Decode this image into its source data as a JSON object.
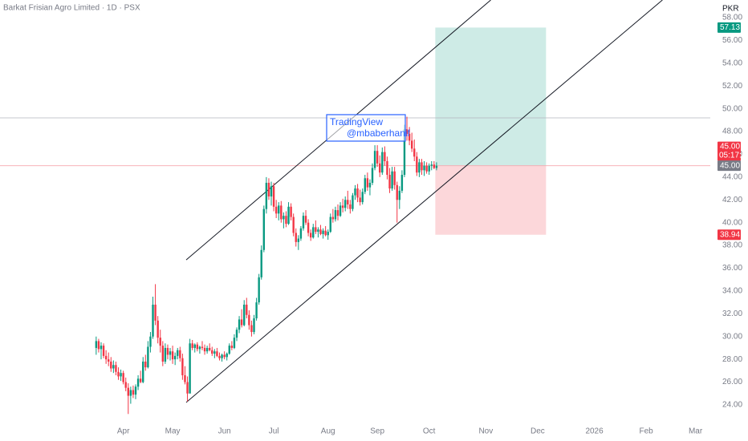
{
  "chart_data": {
    "type": "candlestick",
    "title": "Barkat Frisian Agro Limited · 1D · PSX",
    "currency": "PKR",
    "up_color": "#089981",
    "down_color": "#f23645",
    "grid": false,
    "xlim": [
      -39,
      249
    ],
    "xticks": [
      {
        "value": 11,
        "label": "Apr"
      },
      {
        "value": 31,
        "label": "May"
      },
      {
        "value": 52,
        "label": "Jun"
      },
      {
        "value": 72,
        "label": "Jul"
      },
      {
        "value": 94,
        "label": "Aug"
      },
      {
        "value": 114,
        "label": "Sep"
      },
      {
        "value": 135,
        "label": "Oct"
      },
      {
        "value": 158,
        "label": "Nov"
      },
      {
        "value": 179,
        "label": "Dec"
      },
      {
        "value": 202,
        "label": "2026"
      },
      {
        "value": 223,
        "label": "Feb"
      },
      {
        "value": 243,
        "label": "Mar"
      }
    ],
    "ylim": [
      22.8,
      59.55
    ],
    "yticks": [
      {
        "value": 24,
        "label": "24.00"
      },
      {
        "value": 26,
        "label": "26.00"
      },
      {
        "value": 28,
        "label": "28.00"
      },
      {
        "value": 30,
        "label": "30.00"
      },
      {
        "value": 32,
        "label": "32.00"
      },
      {
        "value": 34,
        "label": "34.00"
      },
      {
        "value": 36,
        "label": "36.00"
      },
      {
        "value": 38,
        "label": "38.00"
      },
      {
        "value": 40,
        "label": "40.00"
      },
      {
        "value": 42,
        "label": "42.00"
      },
      {
        "value": 44,
        "label": "44.00"
      },
      {
        "value": 46,
        "label": "46.00"
      },
      {
        "value": 48,
        "label": "48.00"
      },
      {
        "value": 50,
        "label": "50.00"
      },
      {
        "value": 52,
        "label": "52.00"
      },
      {
        "value": 54,
        "label": "54.00"
      },
      {
        "value": 56,
        "label": "56.00"
      },
      {
        "value": 58,
        "label": "58.00"
      }
    ],
    "ohlc": [
      [
        29.0,
        30.0,
        28.4,
        29.6
      ],
      [
        29.6,
        29.8,
        28.6,
        28.9
      ],
      [
        28.9,
        29.5,
        28.0,
        29.2
      ],
      [
        29.2,
        29.4,
        28.1,
        28.3
      ],
      [
        28.3,
        28.8,
        27.6,
        28.0
      ],
      [
        28.0,
        28.6,
        27.4,
        27.8
      ],
      [
        27.8,
        28.2,
        26.9,
        27.2
      ],
      [
        27.2,
        27.9,
        26.8,
        27.5
      ],
      [
        27.5,
        27.8,
        26.6,
        26.9
      ],
      [
        26.9,
        27.3,
        26.2,
        26.5
      ],
      [
        26.5,
        27.1,
        26.1,
        26.8
      ],
      [
        26.8,
        27.0,
        25.8,
        26.0
      ],
      [
        26.0,
        26.4,
        25.2,
        25.5
      ],
      [
        25.5,
        25.9,
        23.2,
        24.8
      ],
      [
        24.8,
        25.6,
        24.1,
        25.3
      ],
      [
        25.3,
        25.7,
        24.6,
        24.9
      ],
      [
        24.9,
        25.8,
        24.5,
        25.6
      ],
      [
        25.6,
        26.6,
        25.3,
        26.3
      ],
      [
        26.3,
        27.0,
        25.9,
        26.0
      ],
      [
        26.0,
        28.2,
        25.9,
        27.8
      ],
      [
        27.8,
        28.4,
        27.0,
        27.3
      ],
      [
        27.3,
        29.6,
        27.2,
        29.1
      ],
      [
        29.1,
        30.4,
        28.6,
        30.0
      ],
      [
        30.0,
        33.5,
        29.8,
        32.8
      ],
      [
        32.8,
        34.6,
        31.0,
        31.4
      ],
      [
        31.4,
        31.8,
        29.4,
        29.9
      ],
      [
        29.9,
        30.6,
        28.6,
        29.2
      ],
      [
        29.2,
        29.6,
        27.4,
        27.8
      ],
      [
        27.8,
        29.4,
        27.6,
        29.0
      ],
      [
        29.0,
        29.3,
        28.0,
        28.4
      ],
      [
        28.4,
        29.0,
        27.9,
        28.7
      ],
      [
        28.7,
        29.2,
        27.6,
        28.0
      ],
      [
        28.0,
        28.6,
        27.5,
        28.3
      ],
      [
        28.3,
        29.0,
        28.0,
        28.8
      ],
      [
        28.8,
        29.1,
        27.8,
        28.1
      ],
      [
        28.1,
        28.5,
        26.2,
        26.6
      ],
      [
        26.6,
        27.4,
        25.8,
        26.0
      ],
      [
        26.0,
        26.5,
        24.3,
        25.0
      ],
      [
        25.0,
        29.8,
        25.0,
        29.4
      ],
      [
        29.4,
        29.7,
        28.8,
        29.0
      ],
      [
        29.0,
        29.4,
        28.6,
        29.3
      ],
      [
        29.3,
        29.5,
        28.7,
        28.9
      ],
      [
        28.9,
        29.2,
        28.5,
        29.1
      ],
      [
        29.1,
        29.6,
        28.8,
        29.0
      ],
      [
        29.0,
        29.3,
        28.4,
        28.7
      ],
      [
        28.7,
        29.2,
        28.5,
        29.0
      ],
      [
        29.0,
        29.4,
        28.7,
        28.8
      ],
      [
        28.8,
        29.1,
        28.3,
        28.5
      ],
      [
        28.5,
        28.9,
        28.1,
        28.7
      ],
      [
        28.7,
        29.0,
        28.2,
        28.3
      ],
      [
        28.3,
        28.6,
        27.9,
        28.1
      ],
      [
        28.1,
        28.5,
        27.8,
        28.4
      ],
      [
        28.4,
        28.7,
        28.0,
        28.2
      ],
      [
        28.2,
        28.6,
        27.9,
        28.5
      ],
      [
        28.5,
        29.4,
        28.4,
        29.2
      ],
      [
        29.2,
        29.6,
        28.8,
        29.0
      ],
      [
        29.0,
        30.2,
        28.9,
        29.9
      ],
      [
        29.9,
        30.8,
        29.6,
        30.6
      ],
      [
        30.6,
        31.8,
        30.3,
        31.5
      ],
      [
        31.5,
        32.4,
        30.8,
        31.0
      ],
      [
        31.0,
        33.2,
        30.9,
        32.8
      ],
      [
        32.8,
        33.4,
        31.6,
        31.9
      ],
      [
        31.9,
        32.3,
        30.6,
        31.0
      ],
      [
        31.0,
        31.4,
        30.0,
        30.4
      ],
      [
        30.4,
        31.9,
        30.2,
        31.6
      ],
      [
        31.6,
        33.4,
        31.4,
        33.0
      ],
      [
        33.0,
        35.5,
        32.8,
        35.2
      ],
      [
        35.2,
        38.0,
        35.0,
        37.6
      ],
      [
        37.6,
        41.5,
        37.4,
        41.2
      ],
      [
        41.2,
        44.0,
        40.8,
        43.5
      ],
      [
        43.5,
        43.9,
        42.0,
        42.3
      ],
      [
        42.3,
        43.6,
        41.5,
        43.2
      ],
      [
        43.2,
        43.5,
        41.0,
        41.4
      ],
      [
        41.4,
        42.0,
        40.4,
        40.8
      ],
      [
        40.8,
        41.8,
        40.2,
        41.5
      ],
      [
        41.5,
        41.9,
        40.0,
        40.3
      ],
      [
        40.3,
        40.9,
        39.5,
        40.6
      ],
      [
        40.6,
        41.0,
        39.6,
        39.9
      ],
      [
        39.9,
        41.8,
        39.8,
        41.4
      ],
      [
        41.4,
        41.7,
        40.2,
        40.5
      ],
      [
        40.5,
        40.8,
        38.8,
        39.1
      ],
      [
        39.1,
        39.5,
        37.9,
        38.3
      ],
      [
        38.3,
        38.9,
        37.6,
        38.6
      ],
      [
        38.6,
        39.7,
        38.4,
        39.5
      ],
      [
        39.5,
        40.9,
        39.3,
        40.6
      ],
      [
        40.6,
        41.1,
        39.8,
        40.0
      ],
      [
        40.0,
        40.3,
        38.8,
        39.1
      ],
      [
        39.1,
        39.4,
        38.4,
        38.7
      ],
      [
        38.7,
        39.9,
        38.6,
        39.6
      ],
      [
        39.6,
        40.2,
        39.0,
        39.2
      ],
      [
        39.2,
        39.6,
        38.7,
        39.4
      ],
      [
        39.4,
        39.8,
        38.9,
        39.0
      ],
      [
        39.0,
        39.5,
        38.6,
        39.3
      ],
      [
        39.3,
        39.7,
        38.8,
        38.9
      ],
      [
        38.9,
        39.4,
        38.5,
        39.2
      ],
      [
        39.2,
        40.8,
        39.1,
        40.5
      ],
      [
        40.5,
        41.2,
        40.0,
        40.3
      ],
      [
        40.3,
        41.4,
        40.1,
        41.1
      ],
      [
        41.1,
        41.6,
        40.2,
        40.6
      ],
      [
        40.6,
        41.8,
        40.5,
        41.5
      ],
      [
        41.5,
        42.1,
        40.9,
        41.3
      ],
      [
        41.3,
        42.3,
        41.0,
        42.0
      ],
      [
        42.0,
        42.8,
        41.2,
        41.6
      ],
      [
        41.6,
        42.0,
        40.8,
        41.2
      ],
      [
        41.2,
        42.6,
        41.0,
        42.4
      ],
      [
        42.4,
        43.3,
        42.0,
        43.0
      ],
      [
        43.0,
        43.4,
        41.8,
        42.2
      ],
      [
        42.2,
        42.9,
        41.5,
        41.8
      ],
      [
        41.8,
        43.0,
        41.6,
        42.7
      ],
      [
        42.7,
        44.2,
        42.5,
        43.9
      ],
      [
        43.9,
        44.4,
        42.8,
        43.1
      ],
      [
        43.1,
        43.8,
        42.4,
        43.5
      ],
      [
        43.5,
        45.2,
        43.3,
        44.8
      ],
      [
        44.8,
        46.8,
        44.6,
        46.3
      ],
      [
        46.3,
        46.8,
        44.9,
        45.2
      ],
      [
        45.2,
        45.9,
        44.0,
        44.4
      ],
      [
        44.4,
        46.6,
        44.2,
        46.2
      ],
      [
        46.2,
        46.7,
        45.0,
        45.4
      ],
      [
        45.4,
        45.8,
        43.8,
        44.2
      ],
      [
        44.2,
        44.8,
        42.6,
        43.0
      ],
      [
        43.0,
        44.9,
        42.8,
        44.5
      ],
      [
        44.5,
        44.9,
        42.9,
        43.3
      ],
      [
        43.3,
        43.6,
        40.0,
        42.0
      ],
      [
        42.0,
        43.2,
        41.2,
        42.8
      ],
      [
        42.8,
        44.6,
        42.6,
        44.2
      ],
      [
        44.2,
        48.6,
        44.0,
        48.2
      ],
      [
        48.2,
        49.3,
        47.2,
        47.8
      ],
      [
        47.8,
        48.4,
        46.8,
        47.2
      ],
      [
        47.2,
        47.9,
        46.2,
        46.5
      ],
      [
        46.5,
        47.3,
        45.4,
        45.8
      ],
      [
        45.8,
        46.2,
        44.1,
        44.4
      ],
      [
        44.4,
        45.6,
        44.0,
        45.3
      ],
      [
        45.3,
        45.6,
        44.2,
        44.6
      ],
      [
        44.6,
        45.4,
        44.1,
        45.0
      ],
      [
        45.0,
        45.3,
        44.3,
        44.5
      ],
      [
        44.5,
        45.2,
        44.2,
        45.0
      ],
      [
        45.0,
        45.4,
        44.6,
        45.1
      ],
      [
        45.1,
        45.4,
        44.7,
        44.8
      ],
      [
        44.8,
        45.3,
        44.6,
        45.0
      ]
    ],
    "channel": [
      [
        [
          36.5,
          36.73
        ],
        [
          160,
          59.55
        ]
      ],
      [
        [
          36.5,
          24.22
        ],
        [
          229.6,
          59.55
        ]
      ]
    ],
    "hline": 49.2,
    "position": {
      "x": [
        137.5,
        182.4
      ],
      "entry": {
        "value": 45,
        "label": "45.00"
      },
      "target": {
        "value": 57.13,
        "label": "57.13"
      },
      "stop": {
        "value": 38.94,
        "label": "38.94"
      }
    },
    "last_price": {
      "value": 45,
      "label": "45.00"
    },
    "countdown": "05:17:55",
    "annotation": {
      "line1": "TradingView",
      "line2": "@mbaberhanif"
    }
  }
}
